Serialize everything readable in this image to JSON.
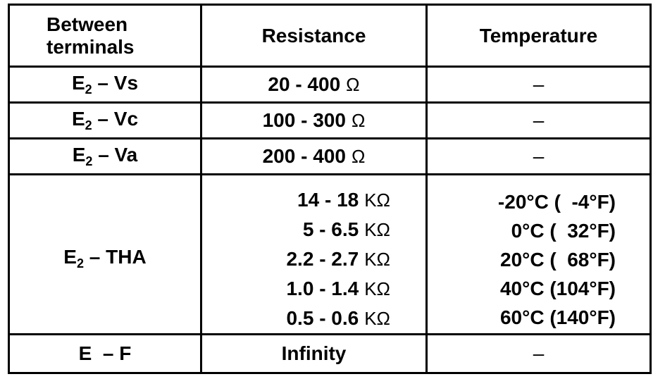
{
  "headers": {
    "terminals": [
      "Between",
      "terminals"
    ],
    "resistance": "Resistance",
    "temperature": "Temperature"
  },
  "rows": [
    {
      "term": "E",
      "sub": "2",
      "rest": " – Vs",
      "resistance": "20 - 400",
      "unit": "Ω",
      "temperature": "–"
    },
    {
      "term": "E",
      "sub": "2",
      "rest": " – Vc",
      "resistance": "100 - 300",
      "unit": "Ω",
      "temperature": "–"
    },
    {
      "term": "E",
      "sub": "2",
      "rest": " – Va",
      "resistance": "200 - 400",
      "unit": "Ω",
      "temperature": "–"
    }
  ],
  "tha": {
    "term": "E",
    "sub": "2",
    "rest": " – THA",
    "entries": [
      {
        "resistance": "14 - 18",
        "unit": "KΩ",
        "temperature": "-20°C (  -4°F)"
      },
      {
        "resistance": "5 - 6.5",
        "unit": "KΩ",
        "temperature": "0°C (  32°F)"
      },
      {
        "resistance": "2.2 - 2.7",
        "unit": "KΩ",
        "temperature": "20°C (  68°F)"
      },
      {
        "resistance": "1.0 - 1.4",
        "unit": "KΩ",
        "temperature": "40°C (104°F)"
      },
      {
        "resistance": "0.5 - 0.6",
        "unit": "KΩ",
        "temperature": "60°C (140°F)"
      }
    ]
  },
  "ef": {
    "term": "E  – F",
    "resistance": "Infinity",
    "temperature": "–"
  }
}
